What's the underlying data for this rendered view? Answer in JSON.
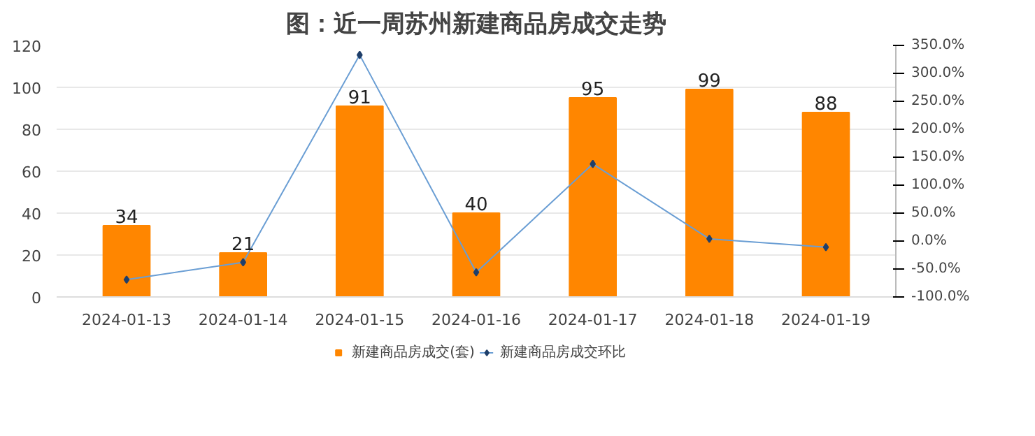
{
  "chart_data": {
    "type": "bar",
    "title": "图：近一周苏州新建商品房成交走势",
    "categories": [
      "2024-01-13",
      "2024-01-14",
      "2024-01-15",
      "2024-01-16",
      "2024-01-17",
      "2024-01-18",
      "2024-01-19"
    ],
    "series": [
      {
        "name": "新建商品房成交(套)",
        "color": "#ff8600",
        "values": [
          34,
          21,
          91,
          40,
          95,
          99,
          88
        ],
        "value_labels": [
          "34",
          "21",
          "91",
          "40",
          "95",
          "99",
          "88"
        ]
      },
      {
        "name": "新建商品房成交环比",
        "type": "line",
        "axis": "y2",
        "color": "#6a9ed4",
        "values": [
          -69,
          -38,
          333,
          -56,
          138,
          4,
          -11
        ]
      }
    ],
    "ylim": [
      0,
      120
    ],
    "yticks": [
      0,
      20,
      40,
      60,
      80,
      100,
      120
    ],
    "y2lim": [
      -100,
      350
    ],
    "y2ticks": [
      {
        "value": -100,
        "label": "-100.0%"
      },
      {
        "value": -50,
        "label": "-50.0%"
      },
      {
        "value": 0,
        "label": "0.0%"
      },
      {
        "value": 50,
        "label": "50.0%"
      },
      {
        "value": 100,
        "label": "100.0%"
      },
      {
        "value": 150,
        "label": "150.0%"
      },
      {
        "value": 200,
        "label": "200.0%"
      },
      {
        "value": 250,
        "label": "250.0%"
      },
      {
        "value": 300,
        "label": "300.0%"
      },
      {
        "value": 350,
        "label": "350.0%"
      }
    ],
    "grid": "y",
    "legend": "bottom",
    "marker": "diamond"
  }
}
